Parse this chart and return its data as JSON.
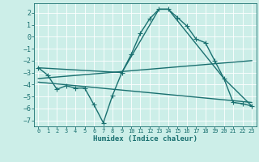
{
  "title": "",
  "xlabel": "Humidex (Indice chaleur)",
  "bg_color": "#cceee8",
  "grid_color": "#ffffff",
  "line_color": "#1a7070",
  "xlim": [
    -0.5,
    23.5
  ],
  "ylim": [
    -7.5,
    2.8
  ],
  "xticks": [
    0,
    1,
    2,
    3,
    4,
    5,
    6,
    7,
    8,
    9,
    10,
    11,
    12,
    13,
    14,
    15,
    16,
    17,
    18,
    19,
    20,
    21,
    22,
    23
  ],
  "yticks": [
    -7,
    -6,
    -5,
    -4,
    -3,
    -2,
    -1,
    0,
    1,
    2
  ],
  "series": [
    {
      "x": [
        0,
        1,
        2,
        3,
        4,
        5,
        6,
        7,
        8,
        9,
        10,
        11,
        12,
        13,
        14,
        15,
        16,
        17,
        18,
        19,
        20,
        21,
        22,
        23
      ],
      "y": [
        -2.6,
        -3.2,
        -4.4,
        -4.1,
        -4.3,
        -4.3,
        -5.7,
        -7.2,
        -4.9,
        -3.0,
        -1.5,
        0.3,
        1.5,
        2.3,
        2.3,
        1.6,
        0.9,
        -0.2,
        -0.5,
        -2.0,
        -3.5,
        -5.5,
        -5.6,
        -5.8
      ],
      "marker": "+",
      "markersize": 4,
      "linewidth": 1.0
    },
    {
      "x": [
        0,
        9,
        13,
        14,
        20,
        23
      ],
      "y": [
        -2.6,
        -3.0,
        2.3,
        2.3,
        -3.5,
        -5.8
      ],
      "marker": null,
      "linewidth": 1.0
    },
    {
      "x": [
        0,
        23
      ],
      "y": [
        -3.5,
        -2.0
      ],
      "marker": null,
      "linewidth": 1.0
    },
    {
      "x": [
        0,
        23
      ],
      "y": [
        -3.8,
        -5.5
      ],
      "marker": null,
      "linewidth": 1.0
    }
  ]
}
